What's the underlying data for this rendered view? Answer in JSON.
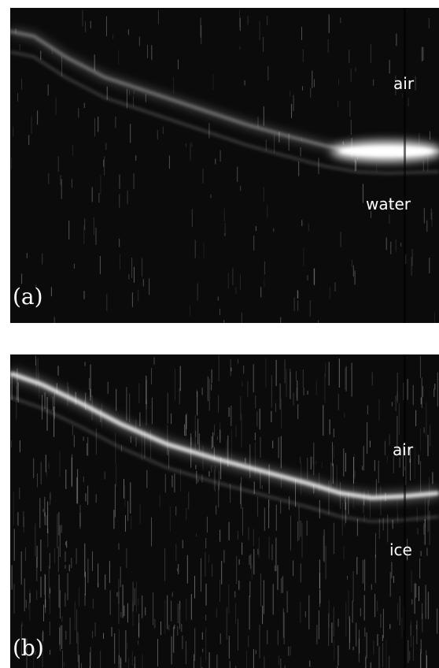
{
  "panels": [
    {
      "id": "a",
      "label": "(a)",
      "upper_medium": "air",
      "lower_medium": "water"
    },
    {
      "id": "b",
      "label": "(b)",
      "upper_medium": "air",
      "lower_medium": "ice"
    }
  ],
  "colors": {
    "background": "#0b0b0b",
    "signal": "#ffffff",
    "label": "#ffffff",
    "page": "#ffffff"
  }
}
